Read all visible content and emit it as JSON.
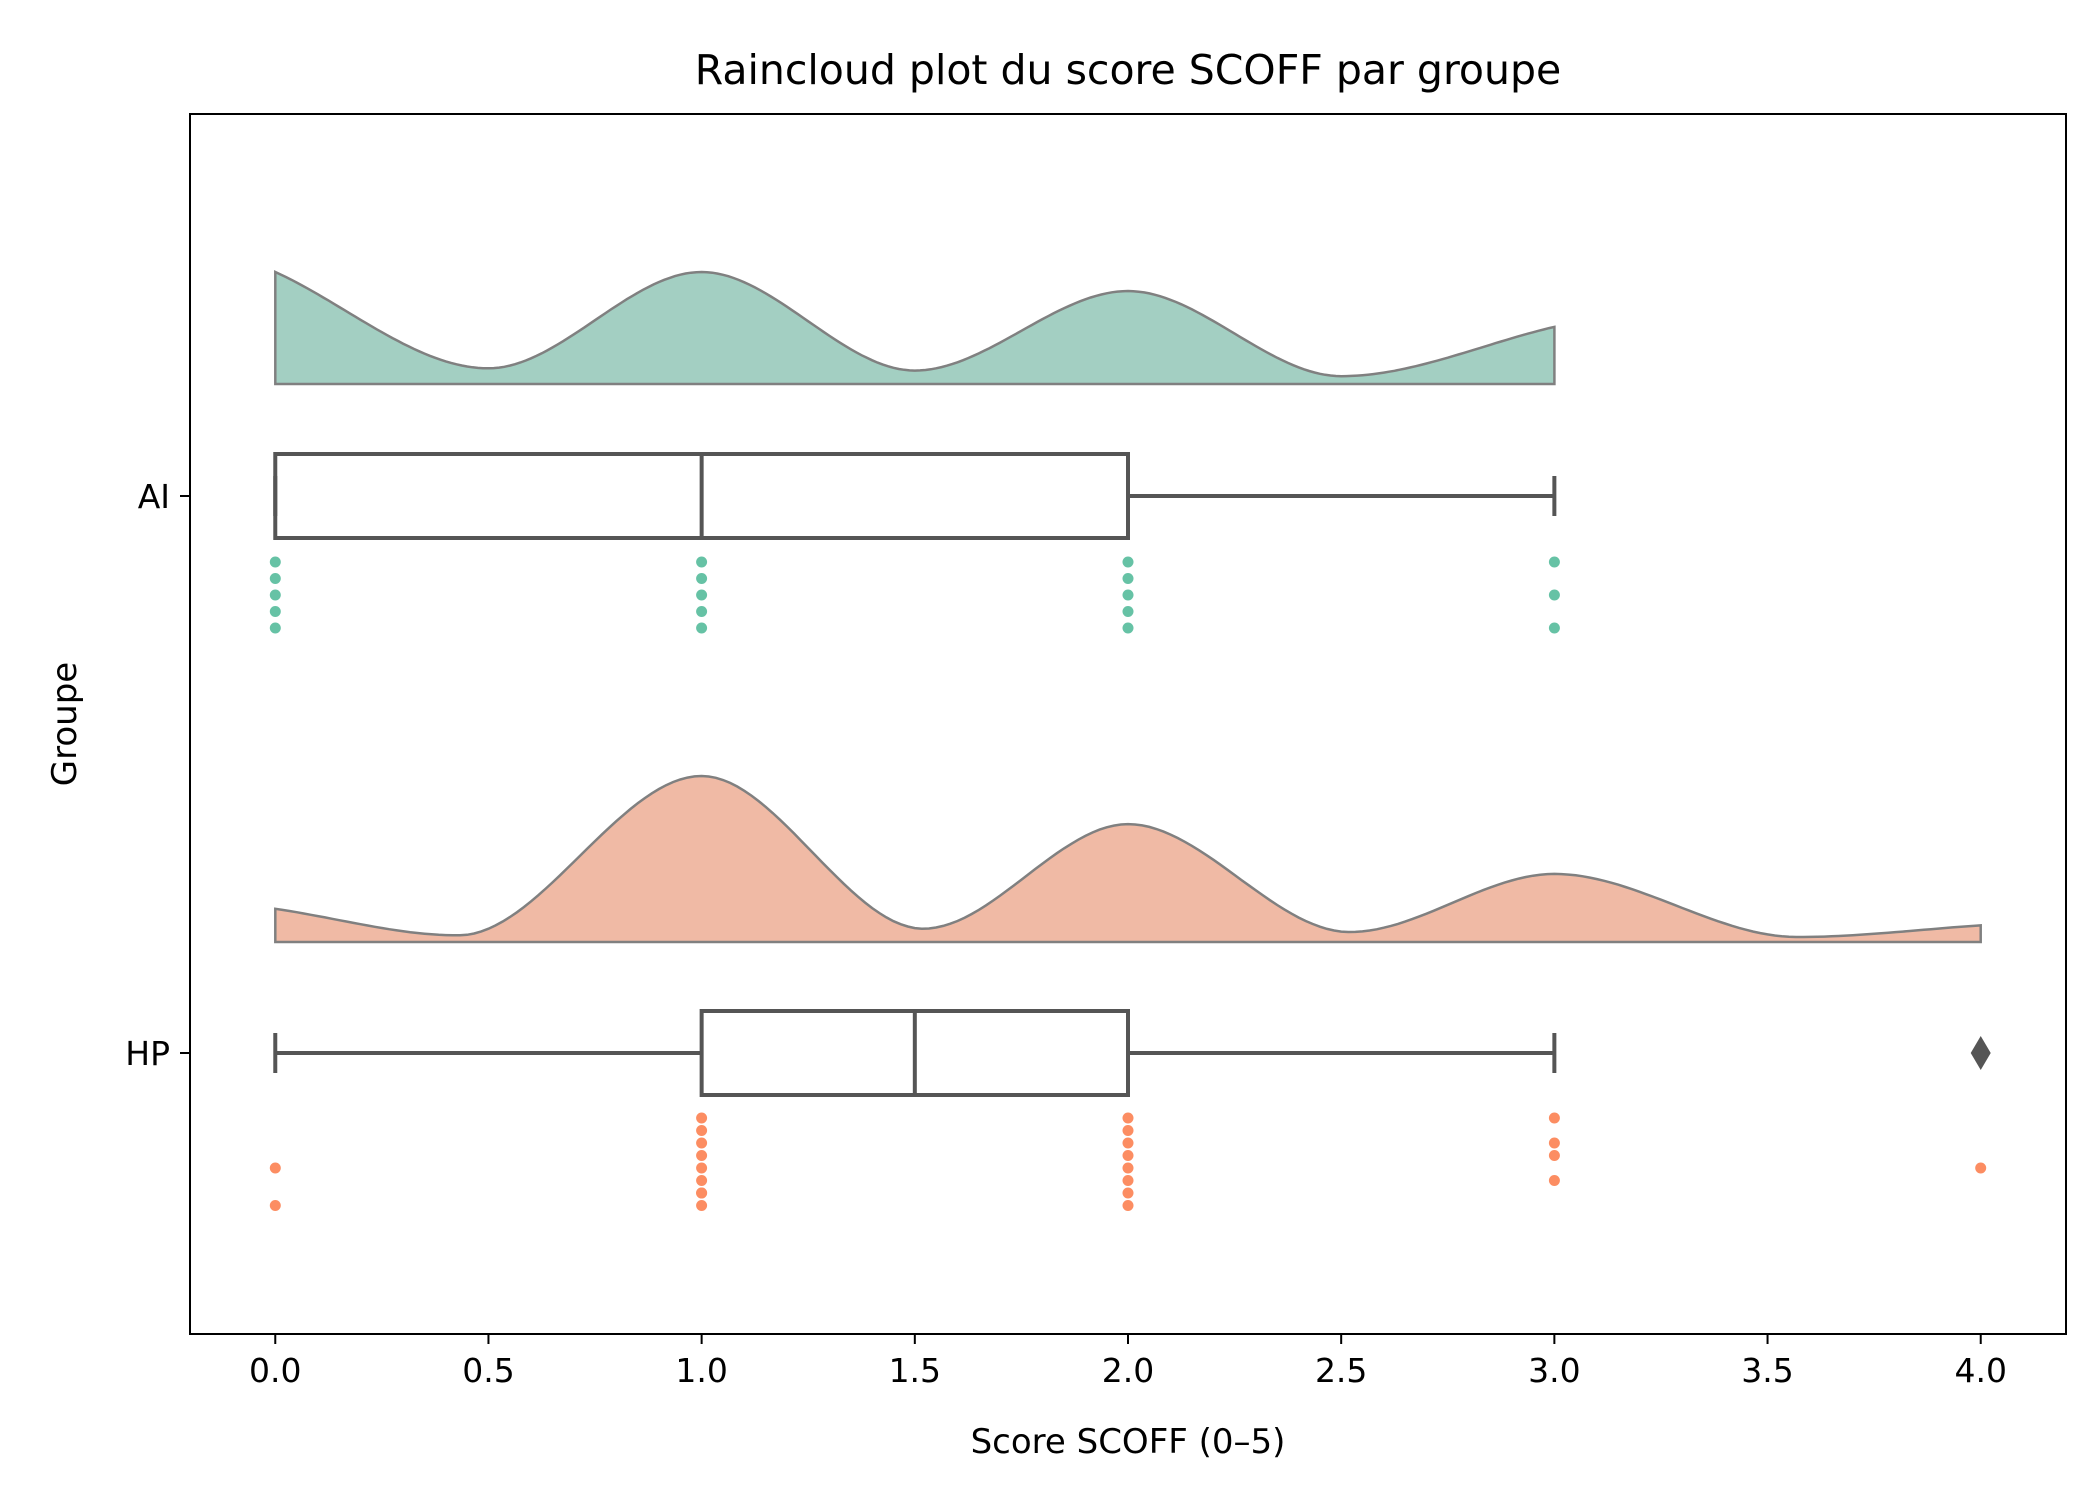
{
  "chart_data": {
    "type": "raincloud",
    "title": "Raincloud plot du score SCOFF par groupe",
    "xlabel": "Score SCOFF (0–5)",
    "ylabel": "Groupe",
    "xlim": [
      -0.2,
      4.2
    ],
    "xticks": [
      0.0,
      0.5,
      1.0,
      1.5,
      2.0,
      2.5,
      3.0,
      3.5,
      4.0
    ],
    "xtick_labels": [
      "0.0",
      "0.5",
      "1.0",
      "1.5",
      "2.0",
      "2.5",
      "3.0",
      "3.5",
      "4.0"
    ],
    "grid": false,
    "outline_color": "#808080",
    "box_color": "#555555",
    "groups": [
      {
        "name": "AI",
        "fill_color": "#a3cfc2",
        "point_color": "#66c2a5",
        "box": {
          "whisker_low": 0,
          "q1": 0,
          "median": 1,
          "q3": 2,
          "whisker_high": 3,
          "outliers": []
        },
        "density": {
          "x": [
            0.0,
            0.5,
            1.0,
            1.5,
            2.0,
            2.5,
            3.0
          ],
          "y": [
            1.0,
            0.14,
            1.0,
            0.12,
            0.83,
            0.07,
            0.51
          ]
        },
        "points": [
          0,
          0,
          0,
          0,
          0,
          1,
          1,
          1,
          1,
          1,
          2,
          2,
          2,
          2,
          2,
          3,
          3,
          3
        ]
      },
      {
        "name": "HP",
        "fill_color": "#f0baa5",
        "point_color": "#fc8d62",
        "box": {
          "whisker_low": 0,
          "q1": 1,
          "median": 1.5,
          "q3": 2,
          "whisker_high": 3,
          "outliers": [
            4
          ]
        },
        "density": {
          "x": [
            0.0,
            0.43,
            1.0,
            1.52,
            2.0,
            2.52,
            3.0,
            3.57,
            4.0
          ],
          "y": [
            0.2,
            0.04,
            1.0,
            0.08,
            0.71,
            0.06,
            0.41,
            0.03,
            0.1
          ]
        },
        "points": [
          0,
          0,
          1,
          1,
          1,
          1,
          1,
          1,
          1,
          1,
          1,
          2,
          2,
          2,
          2,
          2,
          2,
          2,
          2,
          3,
          3,
          3,
          3,
          4
        ]
      }
    ]
  }
}
